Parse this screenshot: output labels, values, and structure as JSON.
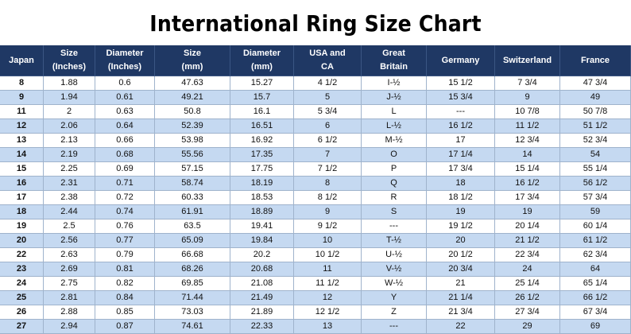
{
  "title": "International Ring Size Chart",
  "table": {
    "header": [
      "Japan",
      "Size\n(Inches)",
      "Diameter\n(Inches)",
      "Size\n(mm)",
      "Diameter\n(mm)",
      "USA and\nCA",
      "Great\nBritain",
      "Germany",
      "Switzerland",
      "France"
    ],
    "rows": [
      [
        "8",
        "1.88",
        "0.6",
        "47.63",
        "15.27",
        "4 1/2",
        "I-½",
        "15 1/2",
        "7 3/4",
        "47 3/4"
      ],
      [
        "9",
        "1.94",
        "0.61",
        "49.21",
        "15.7",
        "5",
        "J-½",
        "15 3/4",
        "9",
        "49"
      ],
      [
        "11",
        "2",
        "0.63",
        "50.8",
        "16.1",
        "5 3/4",
        "L",
        "---",
        "10 7/8",
        "50 7/8"
      ],
      [
        "12",
        "2.06",
        "0.64",
        "52.39",
        "16.51",
        "6",
        "L-½",
        "16 1/2",
        "11 1/2",
        "51 1/2"
      ],
      [
        "13",
        "2.13",
        "0.66",
        "53.98",
        "16.92",
        "6 1/2",
        "M-½",
        "17",
        "12 3/4",
        "52 3/4"
      ],
      [
        "14",
        "2.19",
        "0.68",
        "55.56",
        "17.35",
        "7",
        "O",
        "17 1/4",
        "14",
        "54"
      ],
      [
        "15",
        "2.25",
        "0.69",
        "57.15",
        "17.75",
        "7 1/2",
        "P",
        "17 3/4",
        "15 1/4",
        "55 1/4"
      ],
      [
        "16",
        "2.31",
        "0.71",
        "58.74",
        "18.19",
        "8",
        "Q",
        "18",
        "16 1/2",
        "56 1/2"
      ],
      [
        "17",
        "2.38",
        "0.72",
        "60.33",
        "18.53",
        "8 1/2",
        "R",
        "18 1/2",
        "17 3/4",
        "57 3/4"
      ],
      [
        "18",
        "2.44",
        "0.74",
        "61.91",
        "18.89",
        "9",
        "S",
        "19",
        "19",
        "59"
      ],
      [
        "19",
        "2.5",
        "0.76",
        "63.5",
        "19.41",
        "9 1/2",
        "---",
        "19 1/2",
        "20 1/4",
        "60 1/4"
      ],
      [
        "20",
        "2.56",
        "0.77",
        "65.09",
        "19.84",
        "10",
        "T-½",
        "20",
        "21 1/2",
        "61 1/2"
      ],
      [
        "22",
        "2.63",
        "0.79",
        "66.68",
        "20.2",
        "10 1/2",
        "U-½",
        "20 1/2",
        "22 3/4",
        "62 3/4"
      ],
      [
        "23",
        "2.69",
        "0.81",
        "68.26",
        "20.68",
        "11",
        "V-½",
        "20 3/4",
        "24",
        "64"
      ],
      [
        "24",
        "2.75",
        "0.82",
        "69.85",
        "21.08",
        "11 1/2",
        "W-½",
        "21",
        "25 1/4",
        "65 1/4"
      ],
      [
        "25",
        "2.81",
        "0.84",
        "71.44",
        "21.49",
        "12",
        "Y",
        "21 1/4",
        "26 1/2",
        "66 1/2"
      ],
      [
        "26",
        "2.88",
        "0.85",
        "73.03",
        "21.89",
        "12 1/2",
        "Z",
        "21 3/4",
        "27 3/4",
        "67 3/4"
      ],
      [
        "27",
        "2.94",
        "0.87",
        "74.61",
        "22.33",
        "13",
        "---",
        "22",
        "29",
        "69"
      ]
    ]
  }
}
